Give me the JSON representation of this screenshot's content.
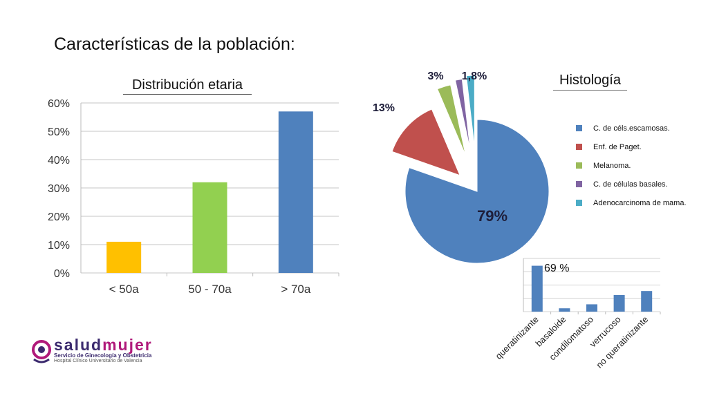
{
  "slide": {
    "title": "Características de la población:"
  },
  "colors": {
    "blue": "#4f81bd",
    "red": "#c0504d",
    "green": "#9bbb59",
    "purple": "#8064a2",
    "cyan": "#4bacc6",
    "yellow": "#ffc000",
    "lightgreen": "#92d050"
  },
  "chart_data": [
    {
      "type": "bar",
      "title": "Distribución etaria",
      "categories": [
        "< 50a",
        "50 - 70a",
        "> 70a"
      ],
      "values": [
        11,
        32,
        57
      ],
      "value_unit": "%",
      "ylim": [
        0,
        60
      ],
      "yticks": [
        "0%",
        "10%",
        "20%",
        "30%",
        "40%",
        "50%",
        "60%"
      ],
      "bar_colors": [
        "#ffc000",
        "#92d050",
        "#4f81bd"
      ],
      "grid": true,
      "legend": "none"
    },
    {
      "type": "pie",
      "title": "Histología",
      "slices": [
        {
          "label": "C. de céls.escamosas.",
          "value": 79,
          "display": "79%",
          "color": "#4f81bd"
        },
        {
          "label": "Enf. de Paget.",
          "value": 13,
          "display": "13%",
          "color": "#c0504d"
        },
        {
          "label": "Melanoma.",
          "value": 3,
          "display": "3%",
          "color": "#9bbb59"
        },
        {
          "label": "C. de células basales.",
          "value": 1.5,
          "display": "",
          "color": "#8064a2"
        },
        {
          "label": "Adenocarcinoma de mama.",
          "value": 1.8,
          "display": "1,8%",
          "color": "#4bacc6"
        }
      ],
      "legend": "right"
    },
    {
      "type": "bar",
      "title": "",
      "categories": [
        "queratinizante",
        "basaloide",
        "condilomatoso",
        "verrucoso",
        "no queratinizante"
      ],
      "values": [
        69,
        5,
        11,
        25,
        31
      ],
      "ylim": [
        0,
        80
      ],
      "annotation": "69 %",
      "bar_color": "#4f81bd",
      "grid": true
    }
  ],
  "logo": {
    "name_part1": "salud",
    "name_part2": "mujer",
    "subtitle": "Servicio de Ginecología y Obstetricia",
    "subtitle2": "Hospital Clínico Universitario de Valencia"
  }
}
